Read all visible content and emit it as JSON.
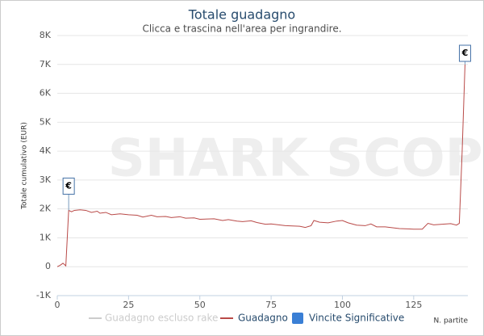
{
  "chart_data": {
    "type": "line",
    "title": "Totale guadagno",
    "subtitle": "Clicca e trascina nell'area per ingrandire.",
    "y_label": "Totale cumulativo (EUR)",
    "x_label": "N. partite",
    "watermark": "SHARK SCOPE",
    "xlim": [
      0,
      144
    ],
    "xticks": [
      0,
      25,
      50,
      75,
      100,
      125
    ],
    "ylim": [
      -1000,
      8000
    ],
    "yticks": [
      {
        "value": -1000,
        "label": "-1K"
      },
      0,
      {
        "value": 1000,
        "label": "1K"
      },
      {
        "value": 2000,
        "label": "2K"
      },
      {
        "value": 3000,
        "label": "3K"
      },
      {
        "value": 4000,
        "label": "4K"
      },
      {
        "value": 5000,
        "label": "5K"
      },
      {
        "value": 6000,
        "label": "6K"
      },
      {
        "value": 7000,
        "label": "7K"
      },
      {
        "value": 8000,
        "label": "8K"
      }
    ],
    "grid": true,
    "hidden_series": [
      {
        "name": "Guadagno escluso rake",
        "color": "#cccccc"
      }
    ],
    "series": [
      {
        "name": "Guadagno",
        "color": "#b94a48",
        "x": [
          0,
          1,
          2,
          3,
          4,
          5,
          6,
          8,
          10,
          12,
          14,
          15,
          17,
          19,
          22,
          25,
          28,
          30,
          33,
          35,
          38,
          40,
          43,
          45,
          48,
          50,
          55,
          58,
          60,
          63,
          65,
          68,
          70,
          73,
          75,
          80,
          85,
          87,
          89,
          90,
          92,
          95,
          98,
          100,
          102,
          105,
          108,
          110,
          112,
          115,
          120,
          125,
          128,
          130,
          132,
          135,
          138,
          140,
          141,
          142,
          143
        ],
        "values": [
          0,
          50,
          120,
          30,
          1950,
          1900,
          1950,
          1970,
          1950,
          1880,
          1920,
          1850,
          1880,
          1800,
          1830,
          1800,
          1780,
          1720,
          1780,
          1730,
          1740,
          1700,
          1730,
          1680,
          1690,
          1640,
          1660,
          1600,
          1630,
          1580,
          1560,
          1590,
          1530,
          1470,
          1480,
          1420,
          1400,
          1360,
          1420,
          1600,
          1540,
          1520,
          1580,
          1600,
          1520,
          1440,
          1420,
          1480,
          1380,
          1380,
          1320,
          1300,
          1300,
          1500,
          1450,
          1470,
          1490,
          1440,
          1500,
          4000,
          7000
        ]
      }
    ],
    "flags": {
      "name": "Vincite Significative",
      "color": "#3a7fd5",
      "label": "€",
      "x": [
        4,
        143
      ],
      "values": [
        1950,
        7000
      ]
    }
  }
}
